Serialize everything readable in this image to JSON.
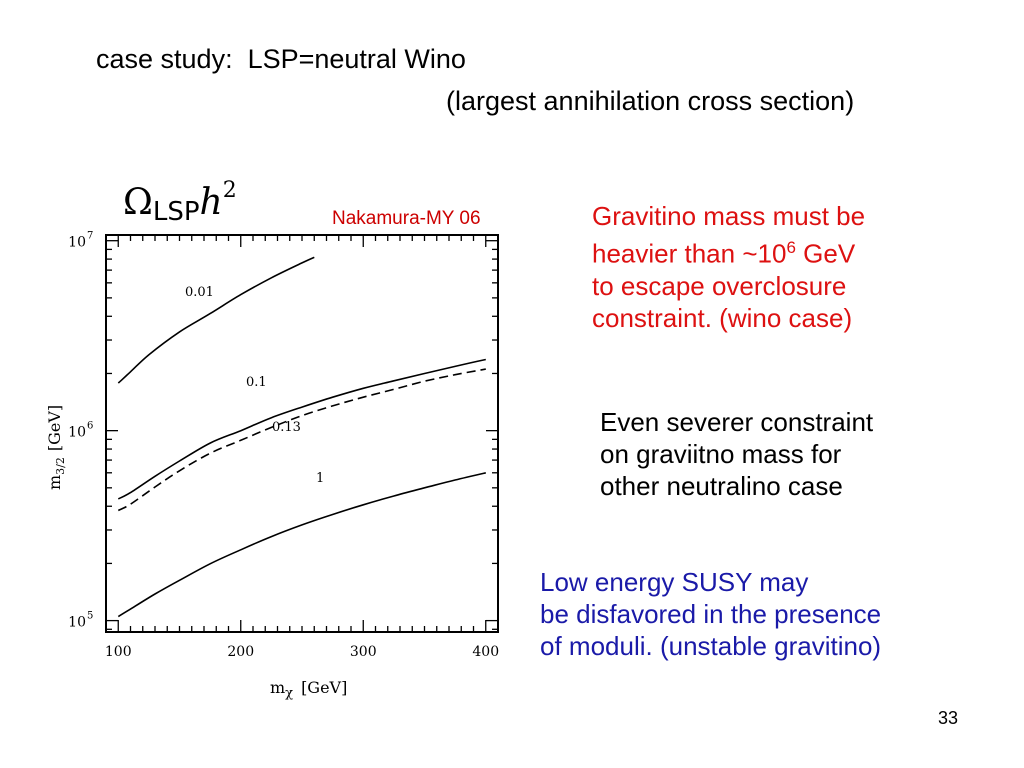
{
  "slide": {
    "title_line1": "case study:  LSP=neutral Wino",
    "title_line2": "(largest annihilation cross section)",
    "omega_symbol": "Ω",
    "omega_subscript": "LSP",
    "omega_h": "h",
    "omega_power": "2",
    "reference": "Nakamura-MY 06",
    "red_text": {
      "line1": "Gravitino mass must be",
      "line2_pre": "heavier than ~10",
      "line2_sup": "6",
      "line2_post": " GeV",
      "line3": "to escape overclosure",
      "line4": "constraint. (wino case)"
    },
    "black_text": {
      "line1": "Even severer constraint",
      "line2": "on graviitno mass for",
      "line3": "other neutralino case"
    },
    "blue_text": {
      "line1": "Low energy SUSY may",
      "line2": "be disfavored in the presence",
      "line3": "of moduli. (unstable gravitino)"
    },
    "page_number": "33",
    "colors": {
      "red": "#dd1111",
      "blue": "#1a1aa8",
      "reference": "#cc0000"
    }
  },
  "chart_data": {
    "type": "line",
    "xlabel_main": "m",
    "xlabel_sub": "χ",
    "xlabel_unit": "[GeV]",
    "ylabel_main": "m",
    "ylabel_sub": "3/2",
    "ylabel_unit": "[GeV]",
    "xlim": [
      90,
      410
    ],
    "ylim_log10": [
      4.94,
      7.03
    ],
    "y_scale": "log",
    "x_ticks": [
      {
        "value": 100,
        "label": "100"
      },
      {
        "value": 200,
        "label": "200"
      },
      {
        "value": 300,
        "label": "300"
      },
      {
        "value": 400,
        "label": "400"
      }
    ],
    "y_ticks": [
      {
        "value": 100000,
        "base": "10",
        "exp": "5"
      },
      {
        "value": 1000000,
        "base": "10",
        "exp": "6"
      },
      {
        "value": 10000000,
        "base": "10",
        "exp": "7"
      }
    ],
    "series": [
      {
        "name": "0.01",
        "style": "solid",
        "x": [
          100,
          110,
          125,
          150,
          175,
          200,
          225,
          250,
          260
        ],
        "y": [
          1780000,
          2040000,
          2510000,
          3310000,
          4130000,
          5200000,
          6380000,
          7640000,
          8180000
        ]
      },
      {
        "name": "0.1",
        "style": "solid",
        "x": [
          100,
          110,
          130,
          150,
          175,
          200,
          225,
          250,
          275,
          300,
          325,
          350,
          375,
          400
        ],
        "y": [
          437000,
          472000,
          575000,
          692000,
          860000,
          1000000,
          1170000,
          1330000,
          1500000,
          1670000,
          1830000,
          2000000,
          2180000,
          2370000
        ]
      },
      {
        "name": "0.13",
        "style": "dashed",
        "x": [
          100,
          110,
          130,
          150,
          175,
          200,
          225,
          250,
          275,
          300,
          325,
          350,
          375,
          400
        ],
        "y": [
          380000,
          410000,
          505000,
          615000,
          760000,
          890000,
          1040000,
          1200000,
          1350000,
          1500000,
          1650000,
          1820000,
          1970000,
          2110000
        ]
      },
      {
        "name": "1",
        "style": "solid",
        "x": [
          100,
          110,
          130,
          150,
          175,
          200,
          225,
          250,
          275,
          300,
          325,
          350,
          375,
          400
        ],
        "y": [
          105000,
          115000,
          138000,
          163000,
          199000,
          236000,
          277000,
          319000,
          362000,
          407000,
          453000,
          500000,
          550000,
          600000
        ]
      }
    ]
  }
}
